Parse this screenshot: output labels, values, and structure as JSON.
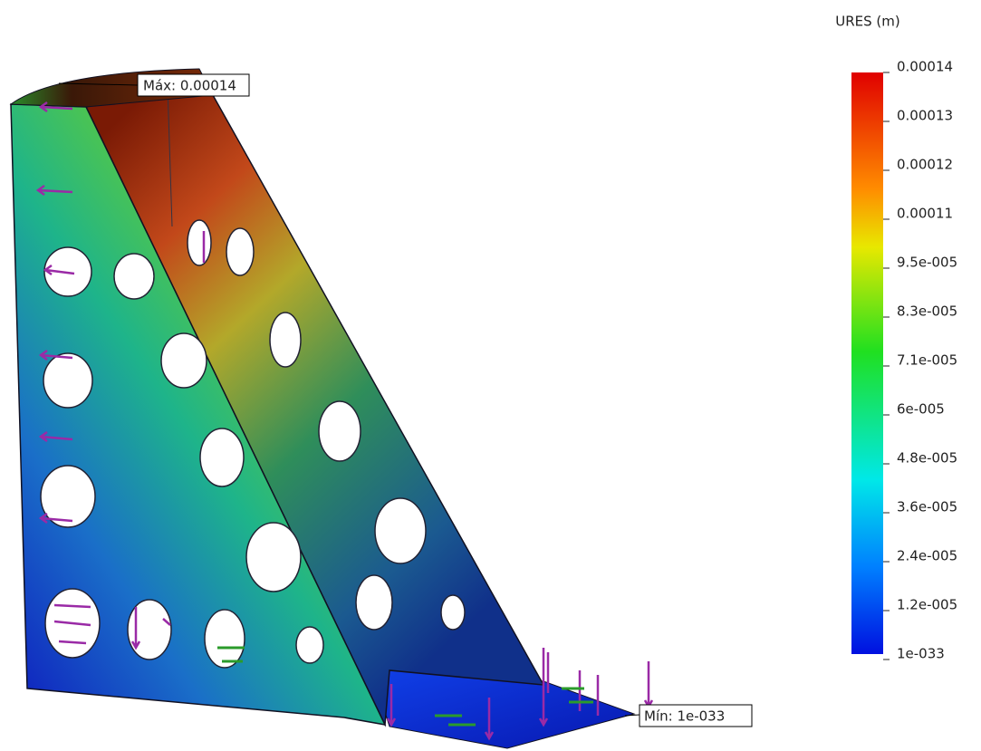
{
  "legend": {
    "title": "URES (m)",
    "labels": [
      "0.00014",
      "0.00013",
      "0.00012",
      "0.00011",
      "9.5e-005",
      "8.3e-005",
      "7.1e-005",
      "6e-005",
      "4.8e-005",
      "3.6e-005",
      "2.4e-005",
      "1.2e-005",
      "1e-033"
    ]
  },
  "annotations": {
    "max": "Máx: 0.00014",
    "min": "Mín: 1e-033"
  }
}
